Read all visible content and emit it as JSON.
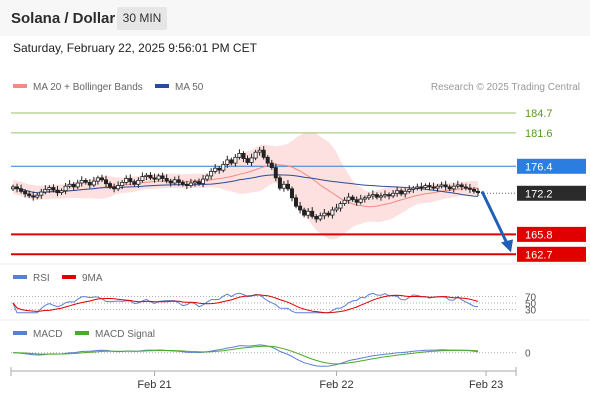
{
  "header": {
    "title": "Solana / Dollar",
    "timeframe": "30 MIN"
  },
  "timestamp": "Saturday, February 22, 2025 9:56:01 PM CET",
  "chart_data": {
    "type": "line",
    "instrument": "Solana / Dollar",
    "interval": "30 MIN",
    "legend": [
      {
        "name": "MA 20 + Bollinger Bands",
        "color": "#f28b82"
      },
      {
        "name": "MA 50",
        "color": "#2b4c9c"
      }
    ],
    "credit": "Research © 2025 Trading Central",
    "price_ylim": [
      161.5,
      187.5
    ],
    "x_ticks": [
      "Feb 21",
      "Feb 22",
      "Feb 23"
    ],
    "x_tick_index": [
      35,
      80,
      117
    ],
    "current_price": {
      "value": 172.2,
      "label": "172.2"
    },
    "levels": [
      {
        "value": 184.7,
        "label": "184.7",
        "kind": "resistance",
        "color": "#9bc26b"
      },
      {
        "value": 181.6,
        "label": "181.6",
        "kind": "resistance",
        "color": "#9bc26b"
      },
      {
        "value": 176.4,
        "label": "176.4",
        "kind": "pivot",
        "color": "#2b7de0"
      },
      {
        "value": 165.8,
        "label": "165.8",
        "kind": "support",
        "color": "#e00000"
      },
      {
        "value": 162.7,
        "label": "162.7",
        "kind": "support",
        "color": "#e00000"
      }
    ],
    "forecast_arrow": {
      "from": 172.5,
      "to": 163.0
    },
    "closes": [
      173.2,
      172.9,
      172.5,
      172.1,
      171.8,
      171.6,
      171.9,
      172.4,
      172.8,
      173.1,
      172.7,
      172.3,
      172.6,
      173.3,
      173.6,
      173.2,
      173.8,
      174.2,
      173.9,
      173.5,
      174.1,
      174.6,
      174.3,
      173.7,
      173.2,
      172.9,
      173.4,
      173.9,
      174.5,
      174.0,
      173.6,
      174.2,
      174.8,
      175.0,
      174.6,
      174.4,
      174.9,
      174.5,
      174.1,
      173.8,
      174.3,
      173.9,
      173.6,
      173.4,
      173.8,
      174.0,
      173.7,
      174.4,
      174.9,
      175.6,
      176.1,
      175.8,
      176.7,
      177.4,
      176.9,
      177.8,
      178.4,
      177.6,
      177.0,
      177.7,
      178.6,
      178.9,
      177.8,
      176.9,
      176.2,
      174.6,
      173.0,
      173.6,
      172.9,
      171.5,
      170.2,
      169.6,
      168.8,
      169.4,
      168.6,
      168.2,
      168.7,
      169.1,
      168.8,
      169.6,
      169.9,
      170.6,
      171.1,
      171.6,
      171.2,
      170.8,
      171.3,
      171.5,
      171.8,
      172.0,
      171.6,
      171.8,
      172.0,
      171.8,
      172.2,
      172.6,
      172.1,
      172.5,
      172.8,
      173.0,
      173.2,
      173.1,
      173.4,
      173.2,
      173.0,
      173.3,
      173.5,
      173.2,
      172.9,
      173.3,
      173.5,
      173.2,
      173.0,
      172.8,
      172.5,
      172.3
    ],
    "rsi": {
      "name": "RSI",
      "signal_name": "9MA",
      "levels": [
        70,
        50,
        30
      ],
      "level_labels": [
        "70",
        "50",
        "30"
      ],
      "ylim": [
        10,
        90
      ],
      "colors": {
        "rsi": "#5b7fd6",
        "signal": "#e00000"
      }
    },
    "macd": {
      "name": "MACD",
      "signal_name": "MACD Signal",
      "zero_label": "0",
      "ylim": [
        -2.2,
        1.4
      ],
      "colors": {
        "macd": "#5b7fd6",
        "signal": "#4caa2b"
      }
    }
  }
}
